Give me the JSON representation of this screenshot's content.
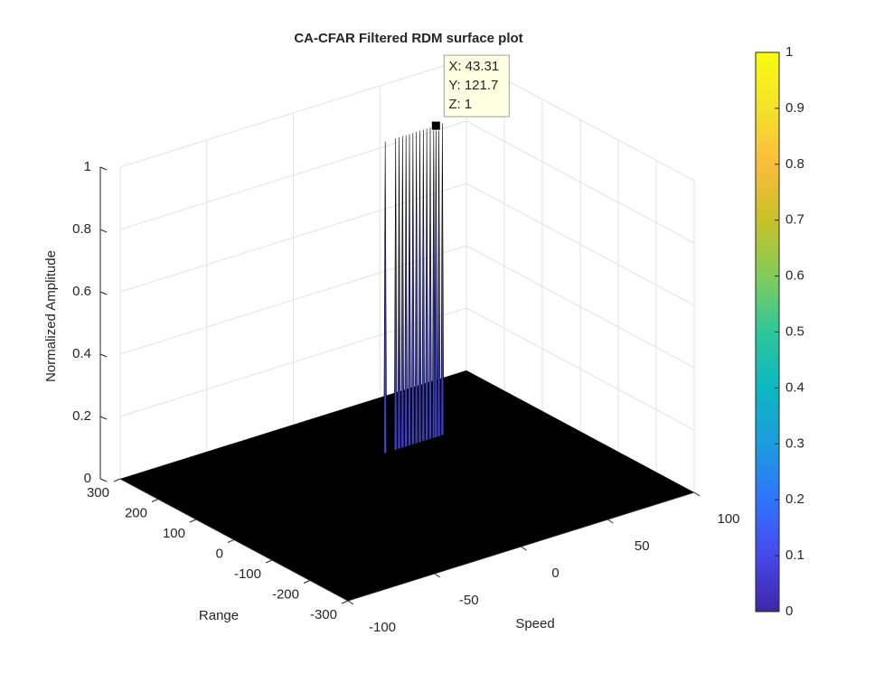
{
  "chart_data": {
    "type": "surface3d",
    "title": "CA-CFAR Filtered RDM surface plot",
    "x_label": "Speed",
    "y_label": "Range",
    "z_label": "Normalized Amplitude",
    "xlim": [
      -100,
      100
    ],
    "xticks": [
      -100,
      -50,
      0,
      50,
      100
    ],
    "ylim": [
      -300,
      300
    ],
    "yticks": [
      -300,
      -200,
      -100,
      0,
      100,
      200,
      300
    ],
    "zlim": [
      0,
      1
    ],
    "zticks": [
      0,
      0.2,
      0.4,
      0.6,
      0.8,
      1
    ],
    "grid": true,
    "floor_color": "#000000",
    "ridge_color": "#3d3fc2",
    "ridge": {
      "y": 121.7,
      "x": [
        14,
        20,
        22,
        24,
        26,
        28,
        30,
        32,
        34,
        36,
        38,
        40,
        42,
        43.31,
        45,
        47
      ],
      "z": [
        1,
        1,
        1,
        1,
        1,
        1,
        1,
        1,
        1,
        1,
        1,
        1,
        1,
        1,
        1,
        1
      ]
    },
    "datatip": {
      "x": 43.31,
      "y": 121.7,
      "z": 1,
      "labels": [
        "X: 43.31",
        "Y: 121.7",
        "Z: 1"
      ]
    },
    "colorbar": {
      "lim": [
        0,
        1
      ],
      "ticks": [
        0,
        0.1,
        0.2,
        0.3,
        0.4,
        0.5,
        0.6,
        0.7,
        0.8,
        0.9,
        1
      ],
      "colormap": [
        "#3e26a8",
        "#4749eb",
        "#2f75fe",
        "#1c9cdd",
        "#0cb7c1",
        "#2ec79a",
        "#81cc59",
        "#c8c129",
        "#fbbc3c",
        "#f5e22a",
        "#f9fb0e"
      ]
    }
  }
}
